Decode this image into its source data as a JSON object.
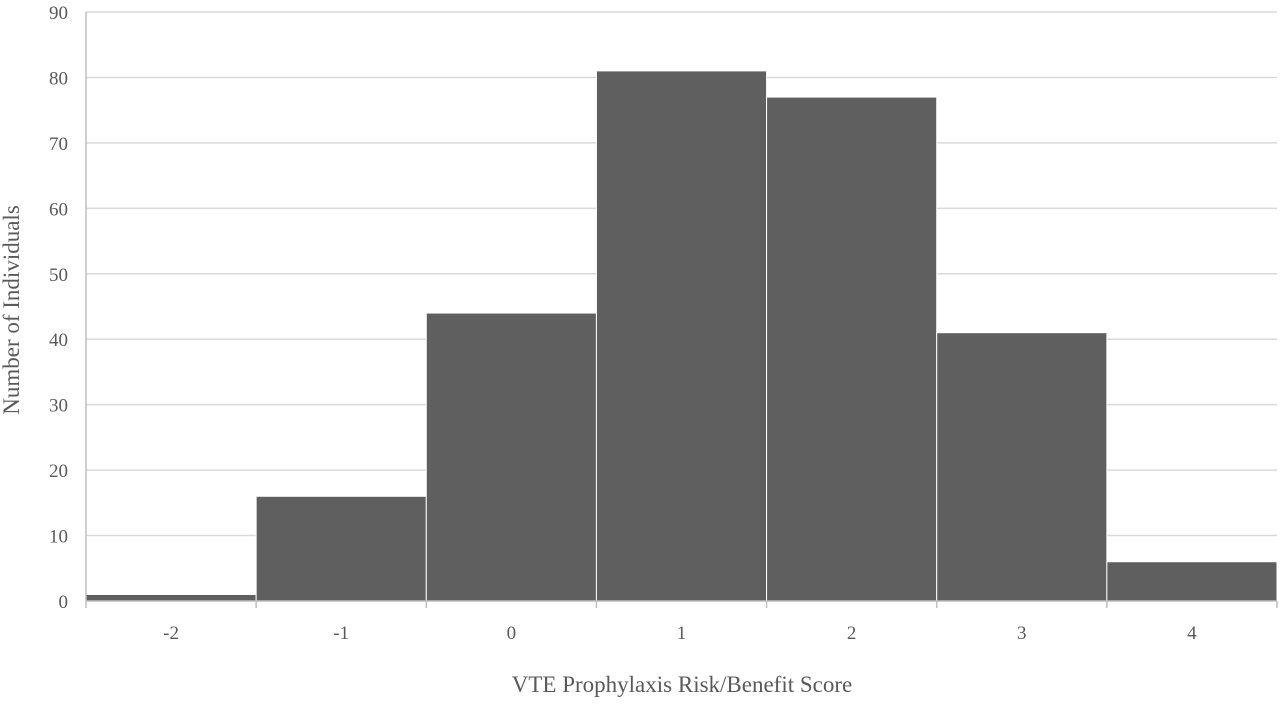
{
  "chart_data": {
    "type": "bar",
    "title": "",
    "xlabel": "VTE Prophylaxis Risk/Benefit Score",
    "ylabel": "Number of Individuals",
    "categories": [
      "-2",
      "-1",
      "0",
      "1",
      "2",
      "3",
      "4"
    ],
    "values": [
      1,
      16,
      44,
      81,
      77,
      41,
      6
    ],
    "ylim": [
      0,
      90
    ],
    "yticks": [
      "0",
      "10",
      "20",
      "30",
      "40",
      "50",
      "60",
      "70",
      "80",
      "90"
    ],
    "grid": true,
    "legend": "none",
    "colors": {
      "bar": "#5f5f5f",
      "grid": "#d9d9d9",
      "axis": "#bfbfbf",
      "text": "#595959"
    }
  }
}
